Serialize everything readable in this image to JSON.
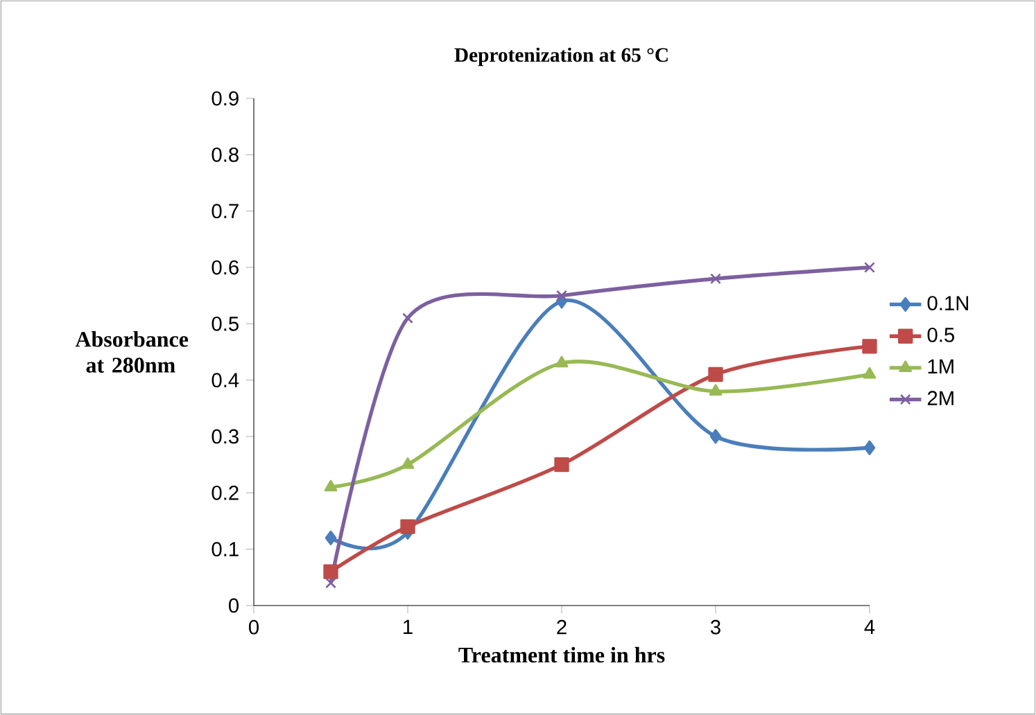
{
  "chart_data": {
    "type": "line",
    "title": "Deprotenization at 65 °C",
    "xlabel": "Treatment  time in hrs",
    "ylabel": "Absorbance at 280nm",
    "x": [
      0.5,
      1,
      2,
      3,
      4
    ],
    "series": [
      {
        "name": "0.1N",
        "color": "#4a7ebb",
        "marker": "diamond",
        "values": [
          0.12,
          0.13,
          0.54,
          0.3,
          0.28
        ]
      },
      {
        "name": "0.5",
        "color": "#be4b48",
        "marker": "square",
        "values": [
          0.06,
          0.14,
          0.25,
          0.41,
          0.46
        ]
      },
      {
        "name": "1M",
        "color": "#98b954",
        "marker": "triangle",
        "values": [
          0.21,
          0.25,
          0.43,
          0.38,
          0.41
        ]
      },
      {
        "name": "2M",
        "color": "#7d60a0",
        "marker": "cross",
        "values": [
          0.04,
          0.51,
          0.55,
          0.58,
          0.6
        ]
      }
    ],
    "xlim": [
      0,
      4
    ],
    "ylim": [
      0,
      0.9
    ],
    "xticks": [
      0,
      1,
      2,
      3,
      4
    ],
    "yticks": [
      0,
      0.1,
      0.2,
      0.3,
      0.4,
      0.5,
      0.6,
      0.7,
      0.8,
      0.9
    ],
    "grid": false,
    "legend": "right"
  }
}
